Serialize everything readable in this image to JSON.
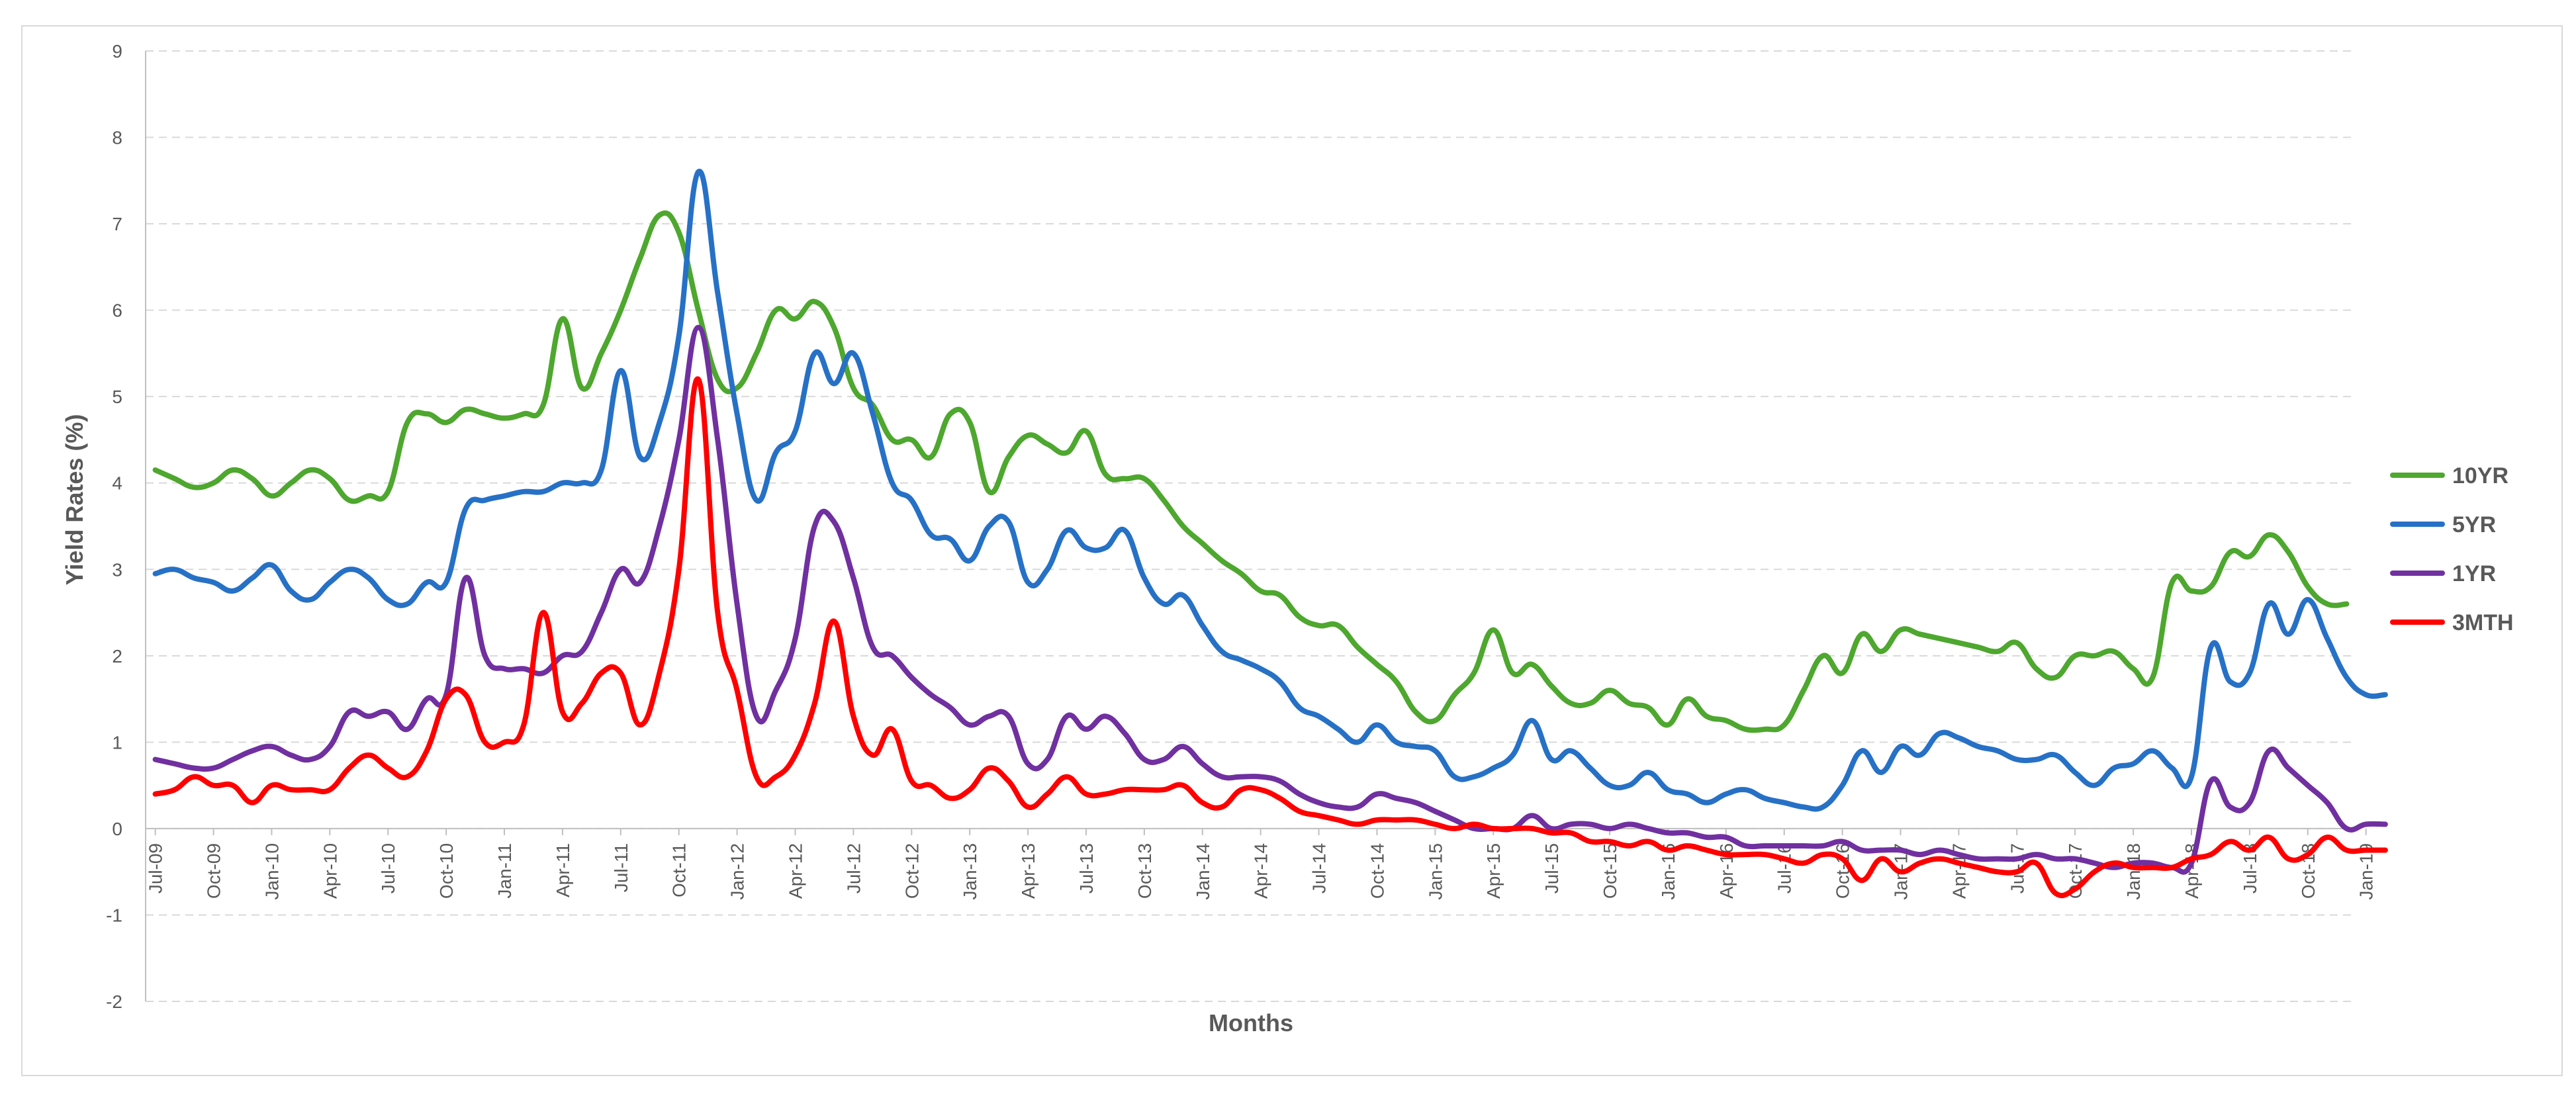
{
  "chart_data": {
    "type": "line",
    "title": "",
    "xlabel": "Months",
    "ylabel": "Yield Rates (%)",
    "ylim": [
      -2,
      9
    ],
    "yticks": [
      -2,
      -1,
      0,
      1,
      2,
      3,
      4,
      5,
      6,
      7,
      8,
      9
    ],
    "grid": true,
    "legend_position": "right",
    "start_month": "2009-07",
    "x_tick_labels": [
      "Jul-09",
      "Oct-09",
      "Jan-10",
      "Apr-10",
      "Jul-10",
      "Oct-10",
      "Jan-11",
      "Apr-11",
      "Jul-11",
      "Oct-11",
      "Jan-12",
      "Apr-12",
      "Jul-12",
      "Oct-12",
      "Jan-13",
      "Apr-13",
      "Jul-13",
      "Oct-13",
      "Jan-14",
      "Apr-14",
      "Jul-14",
      "Oct-14",
      "Jan-15",
      "Apr-15",
      "Jul-15",
      "Oct-15",
      "Jan-16",
      "Apr-16",
      "Jul-16",
      "Oct-16",
      "Jan-17",
      "Apr-17",
      "Jul-17",
      "Oct-17",
      "Jan-18",
      "Apr-18",
      "Jul-18",
      "Oct-18",
      "Jan-19"
    ],
    "series": [
      {
        "name": "10YR",
        "color": "#4ea72e",
        "values": [
          4.15,
          4.05,
          3.95,
          4.0,
          4.15,
          4.05,
          3.85,
          4.0,
          4.15,
          4.05,
          3.8,
          3.85,
          3.9,
          4.7,
          4.8,
          4.7,
          4.85,
          4.8,
          4.75,
          4.8,
          4.9,
          5.9,
          5.1,
          5.5,
          6.0,
          6.6,
          7.1,
          6.9,
          6.0,
          5.2,
          5.1,
          5.5,
          6.0,
          5.9,
          6.1,
          5.8,
          5.1,
          4.9,
          4.5,
          4.5,
          4.3,
          4.8,
          4.7,
          3.9,
          4.3,
          4.55,
          4.45,
          4.35,
          4.6,
          4.1,
          4.05,
          4.05,
          3.8,
          3.5,
          3.3,
          3.1,
          2.95,
          2.75,
          2.7,
          2.45,
          2.35,
          2.35,
          2.1,
          1.9,
          1.7,
          1.35,
          1.25,
          1.55,
          1.8,
          2.3,
          1.8,
          1.9,
          1.65,
          1.45,
          1.45,
          1.6,
          1.45,
          1.4,
          1.2,
          1.5,
          1.3,
          1.25,
          1.15,
          1.15,
          1.2,
          1.6,
          2.0,
          1.8,
          2.25,
          2.05,
          2.3,
          2.25,
          2.2,
          2.15,
          2.1,
          2.05,
          2.15,
          1.85,
          1.75,
          2.0,
          2.0,
          2.05,
          1.85,
          1.75,
          2.85,
          2.75,
          2.8,
          3.2,
          3.15,
          3.4,
          3.2,
          2.8,
          2.6,
          2.6
        ]
      },
      {
        "name": "5YR",
        "color": "#2671c6",
        "values": [
          2.95,
          3.0,
          2.9,
          2.85,
          2.75,
          2.9,
          3.05,
          2.75,
          2.65,
          2.85,
          3.0,
          2.9,
          2.65,
          2.6,
          2.85,
          2.85,
          3.7,
          3.8,
          3.85,
          3.9,
          3.9,
          4.0,
          4.0,
          4.15,
          5.3,
          4.3,
          4.7,
          5.7,
          7.6,
          6.2,
          4.8,
          3.8,
          4.35,
          4.6,
          5.5,
          5.15,
          5.5,
          4.8,
          4.0,
          3.8,
          3.4,
          3.35,
          3.1,
          3.5,
          3.55,
          2.85,
          3.0,
          3.45,
          3.25,
          3.25,
          3.45,
          2.9,
          2.6,
          2.7,
          2.35,
          2.05,
          1.95,
          1.85,
          1.7,
          1.4,
          1.3,
          1.15,
          1.0,
          1.2,
          1.0,
          0.95,
          0.9,
          0.6,
          0.6,
          0.7,
          0.85,
          1.25,
          0.8,
          0.9,
          0.7,
          0.5,
          0.5,
          0.65,
          0.45,
          0.4,
          0.3,
          0.4,
          0.45,
          0.35,
          0.3,
          0.25,
          0.25,
          0.5,
          0.9,
          0.65,
          0.95,
          0.85,
          1.1,
          1.05,
          0.95,
          0.9,
          0.8,
          0.8,
          0.85,
          0.65,
          0.5,
          0.7,
          0.75,
          0.9,
          0.7,
          0.6,
          2.1,
          1.7,
          1.8,
          2.6,
          2.25,
          2.65,
          2.2,
          1.75,
          1.55,
          1.55
        ]
      },
      {
        "name": "1YR",
        "color": "#7030a0",
        "values": [
          0.8,
          0.75,
          0.7,
          0.7,
          0.8,
          0.9,
          0.95,
          0.85,
          0.8,
          0.95,
          1.35,
          1.3,
          1.35,
          1.15,
          1.5,
          1.55,
          2.9,
          2.0,
          1.85,
          1.85,
          1.8,
          2.0,
          2.05,
          2.5,
          3.0,
          2.85,
          3.5,
          4.5,
          5.8,
          4.5,
          2.6,
          1.3,
          1.6,
          2.2,
          3.5,
          3.55,
          2.9,
          2.1,
          2.0,
          1.75,
          1.55,
          1.4,
          1.2,
          1.3,
          1.3,
          0.75,
          0.8,
          1.3,
          1.15,
          1.3,
          1.1,
          0.8,
          0.8,
          0.95,
          0.75,
          0.6,
          0.6,
          0.6,
          0.55,
          0.4,
          0.3,
          0.25,
          0.25,
          0.4,
          0.35,
          0.3,
          0.2,
          0.1,
          0.0,
          0.0,
          0.0,
          0.15,
          0.0,
          0.05,
          0.05,
          0.0,
          0.05,
          0.0,
          -0.05,
          -0.05,
          -0.1,
          -0.1,
          -0.2,
          -0.2,
          -0.2,
          -0.2,
          -0.2,
          -0.15,
          -0.25,
          -0.25,
          -0.25,
          -0.3,
          -0.25,
          -0.3,
          -0.35,
          -0.35,
          -0.35,
          -0.3,
          -0.35,
          -0.35,
          -0.4,
          -0.45,
          -0.4,
          -0.4,
          -0.45,
          -0.4,
          0.55,
          0.25,
          0.3,
          0.9,
          0.7,
          0.5,
          0.3,
          0.0,
          0.05,
          0.05
        ]
      },
      {
        "name": "3MTH",
        "color": "#ff0000",
        "values": [
          0.4,
          0.45,
          0.6,
          0.5,
          0.5,
          0.3,
          0.5,
          0.45,
          0.45,
          0.45,
          0.7,
          0.85,
          0.7,
          0.6,
          0.9,
          1.5,
          1.55,
          1.0,
          1.0,
          1.2,
          2.5,
          1.35,
          1.45,
          1.8,
          1.8,
          1.2,
          1.8,
          3.0,
          5.2,
          2.5,
          1.6,
          0.6,
          0.6,
          0.85,
          1.45,
          2.4,
          1.3,
          0.85,
          1.15,
          0.55,
          0.5,
          0.35,
          0.45,
          0.7,
          0.55,
          0.25,
          0.4,
          0.6,
          0.4,
          0.4,
          0.45,
          0.45,
          0.45,
          0.5,
          0.3,
          0.25,
          0.45,
          0.45,
          0.35,
          0.2,
          0.15,
          0.1,
          0.05,
          0.1,
          0.1,
          0.1,
          0.05,
          0.0,
          0.05,
          0.0,
          0.0,
          0.0,
          -0.05,
          -0.05,
          -0.15,
          -0.15,
          -0.2,
          -0.15,
          -0.25,
          -0.2,
          -0.25,
          -0.3,
          -0.3,
          -0.3,
          -0.35,
          -0.4,
          -0.3,
          -0.35,
          -0.6,
          -0.35,
          -0.5,
          -0.4,
          -0.35,
          -0.4,
          -0.45,
          -0.5,
          -0.5,
          -0.4,
          -0.75,
          -0.7,
          -0.5,
          -0.4,
          -0.45,
          -0.45,
          -0.45,
          -0.35,
          -0.3,
          -0.15,
          -0.25,
          -0.1,
          -0.35,
          -0.3,
          -0.1,
          -0.25,
          -0.25,
          -0.25
        ]
      }
    ]
  }
}
